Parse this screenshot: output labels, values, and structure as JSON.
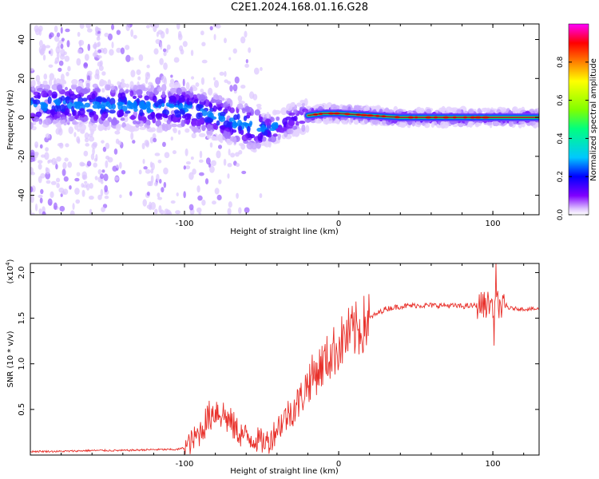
{
  "title": "C2E1.2024.168.01.16.G28",
  "colors": {
    "snr_line": "#e8302a",
    "band_core": "#ff2020",
    "band_mid": "#00d080",
    "band_outer": "#6000ff",
    "halo": "#d8c0ff"
  },
  "chart_data": [
    {
      "type": "heatmap",
      "xlabel": "Height of straight line (km)",
      "ylabel": "Frequency (Hz)",
      "xlim": [
        -200,
        130
      ],
      "ylim": [
        -50,
        48
      ],
      "xticks": [
        -100,
        0,
        100
      ],
      "xtick_labels": [
        "-100",
        "0",
        "100"
      ],
      "yticks": [
        -40,
        -20,
        0,
        20,
        40
      ],
      "ytick_labels": [
        "-40",
        "-20",
        "0",
        "20",
        "40"
      ],
      "colorbar": {
        "label": "Normalized spectral amplitude",
        "range": [
          0,
          1
        ],
        "ticks": [
          0.0,
          0.2,
          0.4,
          0.6,
          0.8
        ],
        "tick_labels": [
          "0.0",
          "0.2",
          "0.4",
          "0.6",
          "0.8"
        ],
        "colormap": [
          "#ffffff",
          "#d0b0ff",
          "#7000ff",
          "#0000ff",
          "#00c8ff",
          "#00ff80",
          "#80ff00",
          "#ffff00",
          "#ff8000",
          "#ff0000",
          "#ff00ff"
        ]
      },
      "ridge": {
        "x": [
          -200,
          -180,
          -160,
          -140,
          -120,
          -100,
          -90,
          -80,
          -70,
          -60,
          -55,
          -50,
          -45,
          -40,
          -35,
          -30,
          -25,
          -20,
          -10,
          0,
          10,
          20,
          40,
          60,
          80,
          100,
          130
        ],
        "y": [
          6,
          7,
          6,
          6,
          5,
          5,
          3,
          1,
          -2,
          -4,
          -5,
          -6,
          -6,
          -5,
          -3,
          -1,
          0,
          1,
          2,
          2,
          1.5,
          1,
          0,
          0,
          0,
          0,
          0
        ]
      }
    },
    {
      "type": "line",
      "xlabel": "Height of straight line (km)",
      "ylabel": "SNR (10 * v/v)",
      "yscale_label": "(x10",
      "yscale_exp": "4",
      "yscale_close": ")",
      "xlim": [
        -200,
        130
      ],
      "ylim": [
        0,
        2.1
      ],
      "xticks": [
        -100,
        0,
        100
      ],
      "xtick_labels": [
        "-100",
        "0",
        "100"
      ],
      "yticks": [
        0.5,
        1.0,
        1.5,
        2.0
      ],
      "ytick_labels": [
        "0.5",
        "1.0",
        "1.5",
        "2.0"
      ],
      "series": [
        {
          "x": [
            -200,
            -180,
            -160,
            -140,
            -120,
            -105,
            -100,
            -95,
            -90,
            -85,
            -80,
            -75,
            -70,
            -65,
            -60,
            -55,
            -50,
            -45,
            -40,
            -35,
            -30,
            -25,
            -20,
            -15,
            -10,
            -5,
            0,
            5,
            10,
            15,
            20,
            25,
            30,
            40,
            50,
            60,
            70,
            80,
            90,
            95,
            100,
            102,
            105,
            110,
            120,
            130
          ],
          "y": [
            0.04,
            0.04,
            0.05,
            0.05,
            0.06,
            0.06,
            0.08,
            0.15,
            0.25,
            0.4,
            0.5,
            0.45,
            0.35,
            0.25,
            0.2,
            0.18,
            0.15,
            0.15,
            0.3,
            0.4,
            0.5,
            0.6,
            0.8,
            0.9,
            1.0,
            1.1,
            1.2,
            1.3,
            1.35,
            1.4,
            1.5,
            1.55,
            1.6,
            1.63,
            1.64,
            1.64,
            1.64,
            1.63,
            1.64,
            1.65,
            1.66,
            1.7,
            1.62,
            1.61,
            1.6,
            1.6
          ]
        }
      ]
    }
  ]
}
